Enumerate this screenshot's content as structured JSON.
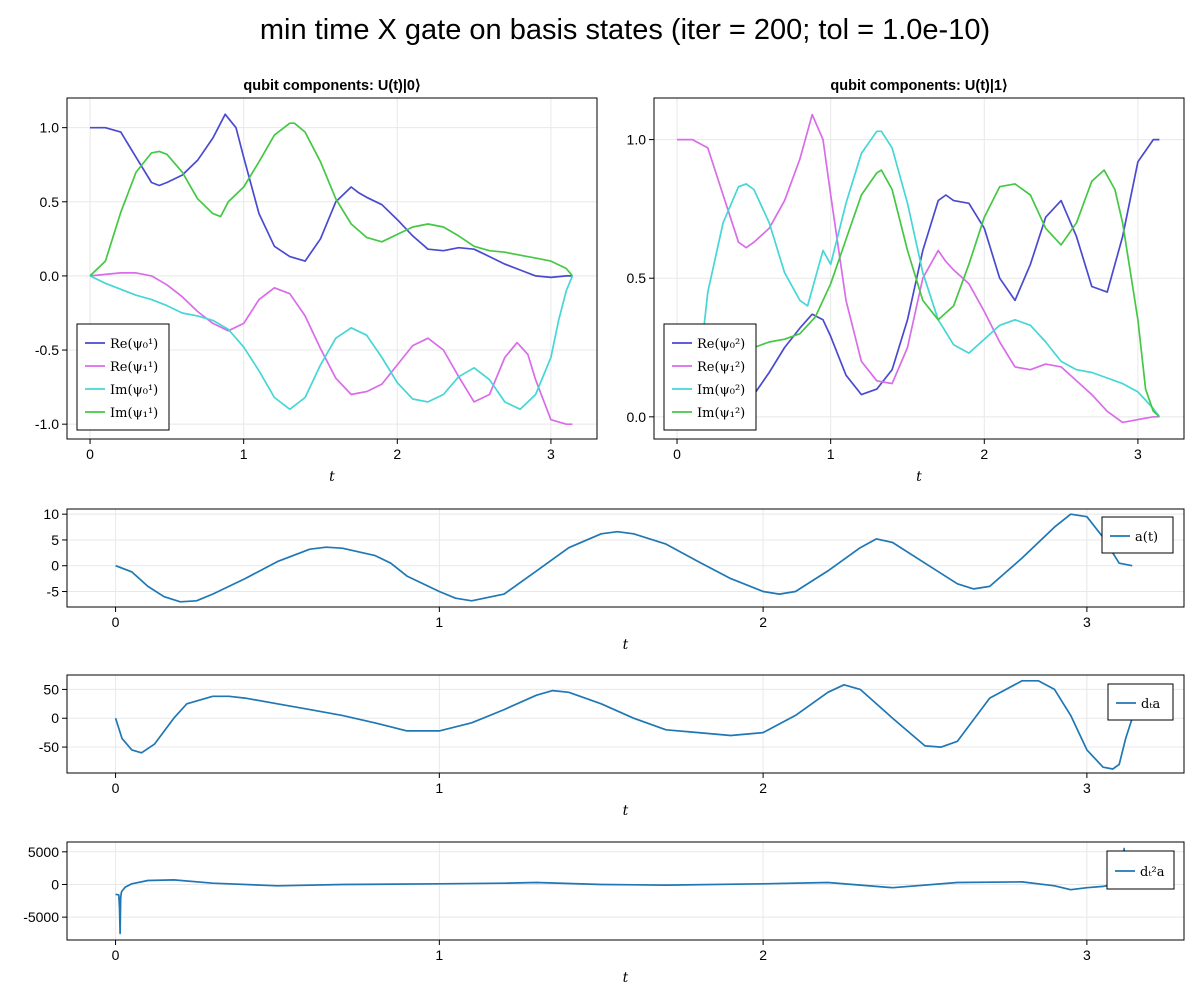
{
  "title": "min time X gate on basis states (iter = 200; tol = 1.0e-10)",
  "chart_data": [
    {
      "type": "line",
      "title": "qubit components: U(t)|0⟩",
      "xlabel": "t",
      "xlim": [
        -0.15,
        3.3
      ],
      "ylim": [
        -1.1,
        1.2
      ],
      "xticks": [
        0,
        1,
        2,
        3
      ],
      "yticks": [
        1.0,
        0.5,
        0.0,
        -0.5,
        -1.0
      ],
      "ytick_labels": [
        "1.0",
        "0.5",
        "0.0",
        "-0.5",
        "-1.0"
      ],
      "grid": true,
      "legend_position": "bottom-left",
      "series": [
        {
          "name": "Re(ψ₀¹)",
          "color": "#4a4ad0",
          "x": [
            0,
            0.1,
            0.2,
            0.3,
            0.4,
            0.45,
            0.5,
            0.6,
            0.7,
            0.8,
            0.88,
            0.95,
            1.0,
            1.1,
            1.2,
            1.3,
            1.4,
            1.5,
            1.6,
            1.7,
            1.75,
            1.8,
            1.9,
            2.0,
            2.1,
            2.2,
            2.3,
            2.4,
            2.5,
            2.6,
            2.7,
            2.8,
            2.9,
            3.0,
            3.1,
            3.14
          ],
          "y": [
            1.0,
            1.0,
            0.97,
            0.8,
            0.63,
            0.61,
            0.63,
            0.68,
            0.78,
            0.93,
            1.09,
            1.0,
            0.8,
            0.42,
            0.2,
            0.13,
            0.1,
            0.25,
            0.5,
            0.6,
            0.56,
            0.53,
            0.48,
            0.38,
            0.27,
            0.18,
            0.17,
            0.19,
            0.18,
            0.13,
            0.08,
            0.04,
            0.0,
            -0.01,
            0.0,
            0.0
          ]
        },
        {
          "name": "Re(ψ₁¹)",
          "color": "#d96ce8",
          "x": [
            0,
            0.1,
            0.2,
            0.3,
            0.4,
            0.5,
            0.6,
            0.7,
            0.8,
            0.9,
            1.0,
            1.1,
            1.2,
            1.3,
            1.4,
            1.5,
            1.6,
            1.7,
            1.75,
            1.8,
            1.9,
            2.0,
            2.1,
            2.2,
            2.3,
            2.4,
            2.5,
            2.6,
            2.7,
            2.78,
            2.85,
            2.9,
            3.0,
            3.1,
            3.14
          ],
          "y": [
            0.0,
            0.01,
            0.02,
            0.02,
            0.0,
            -0.06,
            -0.14,
            -0.24,
            -0.32,
            -0.37,
            -0.32,
            -0.16,
            -0.08,
            -0.12,
            -0.27,
            -0.49,
            -0.69,
            -0.8,
            -0.79,
            -0.78,
            -0.73,
            -0.6,
            -0.47,
            -0.42,
            -0.5,
            -0.68,
            -0.85,
            -0.8,
            -0.55,
            -0.45,
            -0.53,
            -0.7,
            -0.97,
            -1.0,
            -1.0
          ]
        },
        {
          "name": "Im(ψ₀¹)",
          "color": "#45d6d6",
          "x": [
            0,
            0.1,
            0.2,
            0.3,
            0.4,
            0.5,
            0.6,
            0.7,
            0.8,
            0.9,
            1.0,
            1.1,
            1.2,
            1.3,
            1.4,
            1.5,
            1.6,
            1.7,
            1.8,
            1.9,
            2.0,
            2.1,
            2.2,
            2.3,
            2.4,
            2.5,
            2.6,
            2.7,
            2.8,
            2.9,
            3.0,
            3.05,
            3.1,
            3.14
          ],
          "y": [
            0.0,
            -0.05,
            -0.09,
            -0.13,
            -0.16,
            -0.2,
            -0.25,
            -0.27,
            -0.3,
            -0.36,
            -0.48,
            -0.64,
            -0.82,
            -0.9,
            -0.82,
            -0.6,
            -0.42,
            -0.35,
            -0.4,
            -0.55,
            -0.72,
            -0.83,
            -0.85,
            -0.8,
            -0.68,
            -0.62,
            -0.7,
            -0.85,
            -0.9,
            -0.8,
            -0.55,
            -0.3,
            -0.1,
            0.0
          ]
        },
        {
          "name": "Im(ψ₁¹)",
          "color": "#44c844",
          "x": [
            0,
            0.1,
            0.2,
            0.3,
            0.4,
            0.45,
            0.5,
            0.6,
            0.7,
            0.8,
            0.85,
            0.9,
            1.0,
            1.1,
            1.2,
            1.3,
            1.33,
            1.4,
            1.5,
            1.6,
            1.7,
            1.8,
            1.9,
            2.0,
            2.1,
            2.2,
            2.3,
            2.4,
            2.5,
            2.6,
            2.7,
            2.8,
            2.9,
            3.0,
            3.1,
            3.14
          ],
          "y": [
            0.0,
            0.1,
            0.43,
            0.7,
            0.83,
            0.84,
            0.82,
            0.7,
            0.52,
            0.42,
            0.4,
            0.5,
            0.6,
            0.77,
            0.95,
            1.03,
            1.03,
            0.97,
            0.77,
            0.52,
            0.35,
            0.26,
            0.23,
            0.28,
            0.33,
            0.35,
            0.33,
            0.27,
            0.2,
            0.17,
            0.16,
            0.14,
            0.12,
            0.1,
            0.05,
            0.0
          ]
        }
      ]
    },
    {
      "type": "line",
      "title": "qubit components: U(t)|1⟩",
      "xlabel": "t",
      "xlim": [
        -0.15,
        3.3
      ],
      "ylim": [
        -0.08,
        1.15
      ],
      "xticks": [
        0,
        1,
        2,
        3
      ],
      "yticks": [
        1.0,
        0.5,
        0.0
      ],
      "ytick_labels": [
        "1.0",
        "0.5",
        "0.0"
      ],
      "grid": true,
      "legend_position": "bottom-left",
      "series": [
        {
          "name": "Re(ψ₀²)",
          "color": "#4a4ad0",
          "x": [
            0,
            0.1,
            0.2,
            0.3,
            0.4,
            0.5,
            0.6,
            0.7,
            0.8,
            0.88,
            0.95,
            1.0,
            1.1,
            1.2,
            1.3,
            1.4,
            1.5,
            1.6,
            1.7,
            1.75,
            1.8,
            1.9,
            2.0,
            2.1,
            2.2,
            2.3,
            2.4,
            2.5,
            2.6,
            2.7,
            2.8,
            2.9,
            3.0,
            3.1,
            3.14
          ],
          "y": [
            0.0,
            0.0,
            0.01,
            0.02,
            0.03,
            0.08,
            0.16,
            0.25,
            0.32,
            0.37,
            0.35,
            0.29,
            0.15,
            0.08,
            0.1,
            0.17,
            0.35,
            0.6,
            0.78,
            0.8,
            0.78,
            0.77,
            0.68,
            0.5,
            0.42,
            0.55,
            0.72,
            0.78,
            0.65,
            0.47,
            0.45,
            0.65,
            0.92,
            1.0,
            1.0
          ]
        },
        {
          "name": "Re(ψ₁²)",
          "color": "#d96ce8",
          "x": [
            0,
            0.1,
            0.2,
            0.3,
            0.4,
            0.45,
            0.5,
            0.6,
            0.7,
            0.8,
            0.88,
            0.95,
            1.0,
            1.1,
            1.2,
            1.3,
            1.4,
            1.5,
            1.6,
            1.7,
            1.75,
            1.8,
            1.9,
            2.0,
            2.1,
            2.2,
            2.3,
            2.4,
            2.5,
            2.6,
            2.7,
            2.8,
            2.9,
            3.0,
            3.1,
            3.14
          ],
          "y": [
            1.0,
            1.0,
            0.97,
            0.8,
            0.63,
            0.61,
            0.63,
            0.68,
            0.78,
            0.93,
            1.09,
            1.0,
            0.8,
            0.42,
            0.2,
            0.13,
            0.12,
            0.25,
            0.5,
            0.6,
            0.56,
            0.53,
            0.48,
            0.38,
            0.27,
            0.18,
            0.17,
            0.19,
            0.18,
            0.13,
            0.08,
            0.02,
            -0.02,
            -0.01,
            0.0,
            0.0
          ]
        },
        {
          "name": "Im(ψ₀²)",
          "color": "#45d6d6",
          "x": [
            0.17,
            0.2,
            0.3,
            0.4,
            0.45,
            0.5,
            0.6,
            0.7,
            0.8,
            0.85,
            0.9,
            0.95,
            1.0,
            1.1,
            1.2,
            1.3,
            1.33,
            1.4,
            1.5,
            1.6,
            1.7,
            1.8,
            1.9,
            2.0,
            2.1,
            2.2,
            2.3,
            2.4,
            2.5,
            2.6,
            2.7,
            2.8,
            2.9,
            3.0,
            3.1,
            3.14
          ],
          "y": [
            0.3,
            0.45,
            0.7,
            0.83,
            0.84,
            0.82,
            0.7,
            0.52,
            0.42,
            0.4,
            0.5,
            0.6,
            0.55,
            0.77,
            0.95,
            1.03,
            1.03,
            0.97,
            0.77,
            0.52,
            0.35,
            0.26,
            0.23,
            0.28,
            0.33,
            0.35,
            0.33,
            0.27,
            0.2,
            0.17,
            0.16,
            0.14,
            0.12,
            0.09,
            0.03,
            0.0
          ]
        },
        {
          "name": "Im(ψ₁²)",
          "color": "#44c844",
          "x": [
            0.1,
            0.2,
            0.3,
            0.4,
            0.5,
            0.6,
            0.7,
            0.8,
            0.9,
            1.0,
            1.1,
            1.2,
            1.3,
            1.33,
            1.4,
            1.5,
            1.6,
            1.7,
            1.8,
            1.9,
            2.0,
            2.1,
            2.2,
            2.3,
            2.4,
            2.5,
            2.6,
            2.7,
            2.78,
            2.85,
            2.9,
            3.0,
            3.05,
            3.1,
            3.14
          ],
          "y": [
            0.2,
            0.22,
            0.23,
            0.24,
            0.25,
            0.27,
            0.28,
            0.3,
            0.36,
            0.48,
            0.64,
            0.8,
            0.88,
            0.89,
            0.82,
            0.6,
            0.42,
            0.35,
            0.4,
            0.55,
            0.72,
            0.83,
            0.84,
            0.8,
            0.68,
            0.62,
            0.7,
            0.85,
            0.89,
            0.82,
            0.7,
            0.35,
            0.1,
            0.02,
            0.0
          ]
        }
      ]
    },
    {
      "type": "line",
      "xlabel": "t",
      "xlim": [
        -0.15,
        3.3
      ],
      "ylim": [
        -8,
        11
      ],
      "xticks": [
        0,
        1,
        2,
        3
      ],
      "yticks": [
        10,
        5,
        0,
        -5
      ],
      "ytick_labels": [
        "10",
        "5",
        "0",
        "-5"
      ],
      "grid": true,
      "legend_position": "right",
      "series": [
        {
          "name": "a(t)",
          "color": "#1f77b4",
          "x": [
            0,
            0.05,
            0.1,
            0.15,
            0.2,
            0.25,
            0.3,
            0.35,
            0.4,
            0.5,
            0.6,
            0.65,
            0.7,
            0.8,
            0.85,
            0.9,
            1.0,
            1.05,
            1.1,
            1.2,
            1.3,
            1.4,
            1.5,
            1.55,
            1.6,
            1.7,
            1.8,
            1.9,
            2.0,
            2.05,
            2.1,
            2.2,
            2.3,
            2.35,
            2.4,
            2.5,
            2.6,
            2.65,
            2.7,
            2.8,
            2.9,
            2.95,
            3.0,
            3.05,
            3.1,
            3.14
          ],
          "y": [
            0,
            -1.2,
            -4,
            -6,
            -7,
            -6.8,
            -5.5,
            -4,
            -2.5,
            0.8,
            3.2,
            3.6,
            3.4,
            2,
            0.5,
            -2,
            -5,
            -6.3,
            -6.8,
            -5.5,
            -1,
            3.5,
            6.2,
            6.6,
            6.2,
            4.2,
            0.8,
            -2.5,
            -5,
            -5.5,
            -5,
            -1,
            3.5,
            5.2,
            4.5,
            0.5,
            -3.5,
            -4.5,
            -4,
            1.5,
            7.5,
            10,
            9.5,
            5.5,
            0.5,
            0
          ]
        }
      ]
    },
    {
      "type": "line",
      "xlabel": "t",
      "xlim": [
        -0.15,
        3.3
      ],
      "ylim": [
        -95,
        75
      ],
      "xticks": [
        0,
        1,
        2,
        3
      ],
      "yticks": [
        50,
        0,
        -50
      ],
      "ytick_labels": [
        "50",
        "0",
        "-50"
      ],
      "grid": true,
      "legend_position": "right",
      "series": [
        {
          "name": "dₜa",
          "color": "#1f77b4",
          "x": [
            0,
            0.02,
            0.05,
            0.08,
            0.12,
            0.18,
            0.22,
            0.3,
            0.35,
            0.4,
            0.5,
            0.6,
            0.7,
            0.8,
            0.9,
            1.0,
            1.1,
            1.2,
            1.3,
            1.35,
            1.4,
            1.5,
            1.6,
            1.7,
            1.8,
            1.9,
            2.0,
            2.1,
            2.2,
            2.25,
            2.3,
            2.4,
            2.5,
            2.55,
            2.6,
            2.7,
            2.8,
            2.85,
            2.9,
            2.95,
            3.0,
            3.05,
            3.08,
            3.1,
            3.12,
            3.14
          ],
          "y": [
            0,
            -35,
            -55,
            -60,
            -45,
            0,
            25,
            38,
            38,
            35,
            25,
            15,
            5,
            -8,
            -22,
            -22,
            -8,
            15,
            40,
            48,
            45,
            25,
            0,
            -20,
            -25,
            -30,
            -25,
            5,
            45,
            58,
            50,
            0,
            -48,
            -50,
            -40,
            35,
            65,
            65,
            50,
            5,
            -55,
            -85,
            -88,
            -80,
            -35,
            0
          ]
        }
      ]
    },
    {
      "type": "line",
      "xlabel": "t",
      "xlim": [
        -0.15,
        3.3
      ],
      "ylim": [
        -8500,
        6500
      ],
      "xticks": [
        0,
        1,
        2,
        3
      ],
      "yticks": [
        5000,
        0,
        -5000
      ],
      "ytick_labels": [
        "5000",
        "0",
        "-5000"
      ],
      "grid": true,
      "legend_position": "right",
      "series": [
        {
          "name": "dₜ²a",
          "color": "#1f77b4",
          "x": [
            0,
            0.01,
            0.012,
            0.014,
            0.016,
            0.018,
            0.02,
            0.025,
            0.03,
            0.05,
            0.1,
            0.18,
            0.3,
            0.5,
            0.7,
            1.0,
            1.2,
            1.3,
            1.5,
            1.7,
            2.0,
            2.2,
            2.4,
            2.6,
            2.8,
            2.9,
            2.95,
            3.0,
            3.05,
            3.08,
            3.1,
            3.11,
            3.115,
            3.12,
            3.14
          ],
          "y": [
            -1500,
            -1600,
            -3500,
            -7500,
            -2000,
            -1200,
            -1000,
            -700,
            -400,
            100,
            600,
            700,
            200,
            -200,
            0,
            100,
            200,
            300,
            0,
            -100,
            100,
            300,
            -500,
            300,
            400,
            -200,
            -800,
            -500,
            -300,
            0,
            500,
            800,
            5500,
            1000,
            0
          ]
        }
      ]
    }
  ]
}
